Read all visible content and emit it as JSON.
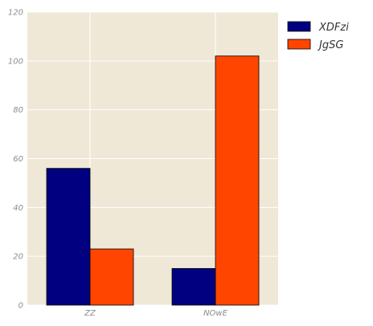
{
  "chart_data": {
    "type": "bar",
    "categories": [
      "ZZ",
      "NOwE"
    ],
    "series": [
      {
        "name": "XDFzi",
        "values": [
          56,
          15
        ],
        "color": "#000080"
      },
      {
        "name": "JgSG",
        "values": [
          23,
          102
        ],
        "color": "#FF4500"
      }
    ],
    "ylim": [
      0,
      120
    ],
    "yticks": [
      0,
      20,
      40,
      60,
      80,
      100,
      120
    ],
    "grid": true,
    "legend_position": "outside-top-right",
    "plot_background": "#EFE8D7",
    "grid_color": "#FFFFFF"
  }
}
